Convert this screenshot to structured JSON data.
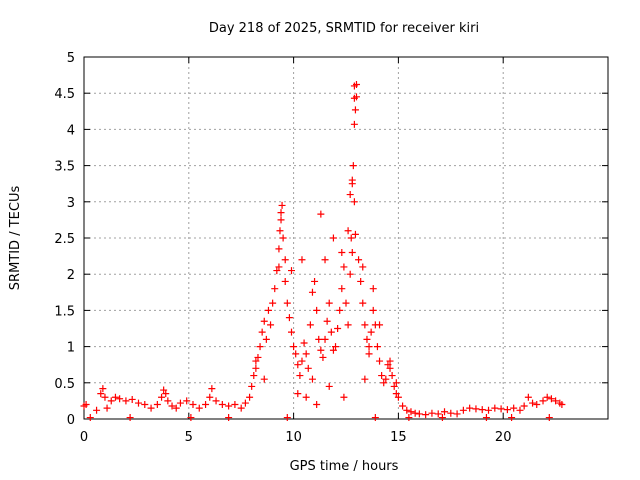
{
  "chart_data": {
    "type": "scatter",
    "title": "Day 218 of 2025, SRMTID for receiver kiri",
    "xlabel": "GPS time / hours",
    "ylabel": "SRMTID / TECUs",
    "xlim": [
      0,
      25
    ],
    "ylim": [
      0,
      5
    ],
    "x_ticks": [
      0,
      5,
      10,
      15,
      20
    ],
    "x_tick_labels": [
      "0",
      "5",
      "10",
      "15",
      "20"
    ],
    "y_ticks": [
      0,
      0.5,
      1,
      1.5,
      2,
      2.5,
      3,
      3.5,
      4,
      4.5,
      5
    ],
    "y_tick_labels": [
      "0",
      "0.5",
      "1",
      "1.5",
      "2",
      "2.5",
      "3",
      "3.5",
      "4",
      "4.5",
      "5"
    ],
    "grid": true,
    "marker": "+",
    "colors": {
      "series": "#ff0000",
      "grid": "#a0a0a0",
      "axis": "#000000"
    },
    "series": [
      {
        "name": "SRMTID",
        "x": [
          0.0,
          0.1,
          0.6,
          0.8,
          0.9,
          1.0,
          1.1,
          1.3,
          1.5,
          1.7,
          2.0,
          2.3,
          2.6,
          2.9,
          3.2,
          3.5,
          3.7,
          3.8,
          3.9,
          4.0,
          4.2,
          4.4,
          4.6,
          4.9,
          5.2,
          5.5,
          5.8,
          6.0,
          6.1,
          6.3,
          6.6,
          6.9,
          7.2,
          7.5,
          7.7,
          7.9,
          8.0,
          8.1,
          8.2,
          8.3,
          8.4,
          8.5,
          8.6,
          8.7,
          8.8,
          8.9,
          9.0,
          9.1,
          9.2,
          9.3,
          9.35,
          9.4,
          9.45,
          9.5,
          9.6,
          9.7,
          9.8,
          9.9,
          10.0,
          10.1,
          10.2,
          10.3,
          10.4,
          10.5,
          10.6,
          10.7,
          10.8,
          10.9,
          11.0,
          11.1,
          11.2,
          11.3,
          11.4,
          11.5,
          11.6,
          11.7,
          11.8,
          11.9,
          12.0,
          12.1,
          12.2,
          12.3,
          12.4,
          12.5,
          12.6,
          12.7,
          12.75,
          12.8,
          12.85,
          12.9,
          12.95,
          13.0,
          13.1,
          13.2,
          13.3,
          13.4,
          13.5,
          13.6,
          13.7,
          13.8,
          13.9,
          14.0,
          14.1,
          14.2,
          14.3,
          14.4,
          14.5,
          14.6,
          14.7,
          14.8,
          14.9,
          15.0,
          15.2,
          15.4,
          15.6,
          15.8,
          16.0,
          16.3,
          16.6,
          16.9,
          17.2,
          17.5,
          17.8,
          18.1,
          18.4,
          18.7,
          19.0,
          19.3,
          19.6,
          19.9,
          20.2,
          20.5,
          20.8,
          21.0,
          21.2,
          21.4,
          21.6,
          21.9,
          22.1,
          22.3,
          22.5,
          22.7,
          22.8,
          9.4,
          9.6,
          9.3,
          11.3,
          11.5,
          12.6,
          12.7,
          12.8,
          12.9,
          12.9,
          13.0,
          12.9,
          12.8,
          12.95,
          10.2,
          10.6,
          10.9,
          11.7,
          11.1,
          12.4,
          13.4,
          14.1,
          13.6,
          8.6,
          8.2,
          9.9,
          10.4,
          11.9,
          12.3,
          13.3,
          13.8,
          14.6,
          14.9,
          0.3,
          2.2,
          5.1,
          6.9,
          9.7,
          13.9,
          15.5,
          17.1,
          19.2,
          20.4,
          22.2
        ],
        "y": [
          0.18,
          0.2,
          0.12,
          0.35,
          0.42,
          0.3,
          0.15,
          0.25,
          0.3,
          0.28,
          0.25,
          0.27,
          0.22,
          0.2,
          0.15,
          0.2,
          0.3,
          0.4,
          0.35,
          0.25,
          0.18,
          0.15,
          0.22,
          0.25,
          0.2,
          0.15,
          0.2,
          0.3,
          0.42,
          0.25,
          0.2,
          0.18,
          0.2,
          0.15,
          0.22,
          0.3,
          0.45,
          0.6,
          0.7,
          0.85,
          1.0,
          1.2,
          1.35,
          1.1,
          1.5,
          1.3,
          1.6,
          1.8,
          2.05,
          2.35,
          2.6,
          2.85,
          2.95,
          2.5,
          1.9,
          1.6,
          1.4,
          1.2,
          1.0,
          0.9,
          0.75,
          0.6,
          0.8,
          1.05,
          0.9,
          0.7,
          1.3,
          1.75,
          1.9,
          1.5,
          1.1,
          0.95,
          0.85,
          1.1,
          1.35,
          1.6,
          1.2,
          0.95,
          1.0,
          1.25,
          1.5,
          1.8,
          2.1,
          1.6,
          1.3,
          2.0,
          2.5,
          3.3,
          3.5,
          4.07,
          4.27,
          4.45,
          2.2,
          1.9,
          1.6,
          1.3,
          1.1,
          1.0,
          1.2,
          1.5,
          1.3,
          1.0,
          0.8,
          0.6,
          0.5,
          0.55,
          0.75,
          0.8,
          0.6,
          0.45,
          0.35,
          0.3,
          0.18,
          0.12,
          0.1,
          0.08,
          0.07,
          0.06,
          0.08,
          0.07,
          0.1,
          0.08,
          0.07,
          0.12,
          0.15,
          0.14,
          0.13,
          0.12,
          0.15,
          0.14,
          0.13,
          0.15,
          0.12,
          0.18,
          0.3,
          0.22,
          0.2,
          0.25,
          0.3,
          0.28,
          0.25,
          0.22,
          0.2,
          2.75,
          2.2,
          2.1,
          2.83,
          2.2,
          2.6,
          3.1,
          3.25,
          3.0,
          4.6,
          4.62,
          4.43,
          2.3,
          2.55,
          0.35,
          0.3,
          0.55,
          0.45,
          0.2,
          0.3,
          0.55,
          1.3,
          0.9,
          0.55,
          0.8,
          2.05,
          2.2,
          2.5,
          2.3,
          2.1,
          1.8,
          0.7,
          0.5,
          0.02,
          0.02,
          0.02,
          0.02,
          0.02,
          0.02,
          0.02,
          0.02,
          0.02,
          0.02,
          0.02
        ]
      }
    ]
  }
}
